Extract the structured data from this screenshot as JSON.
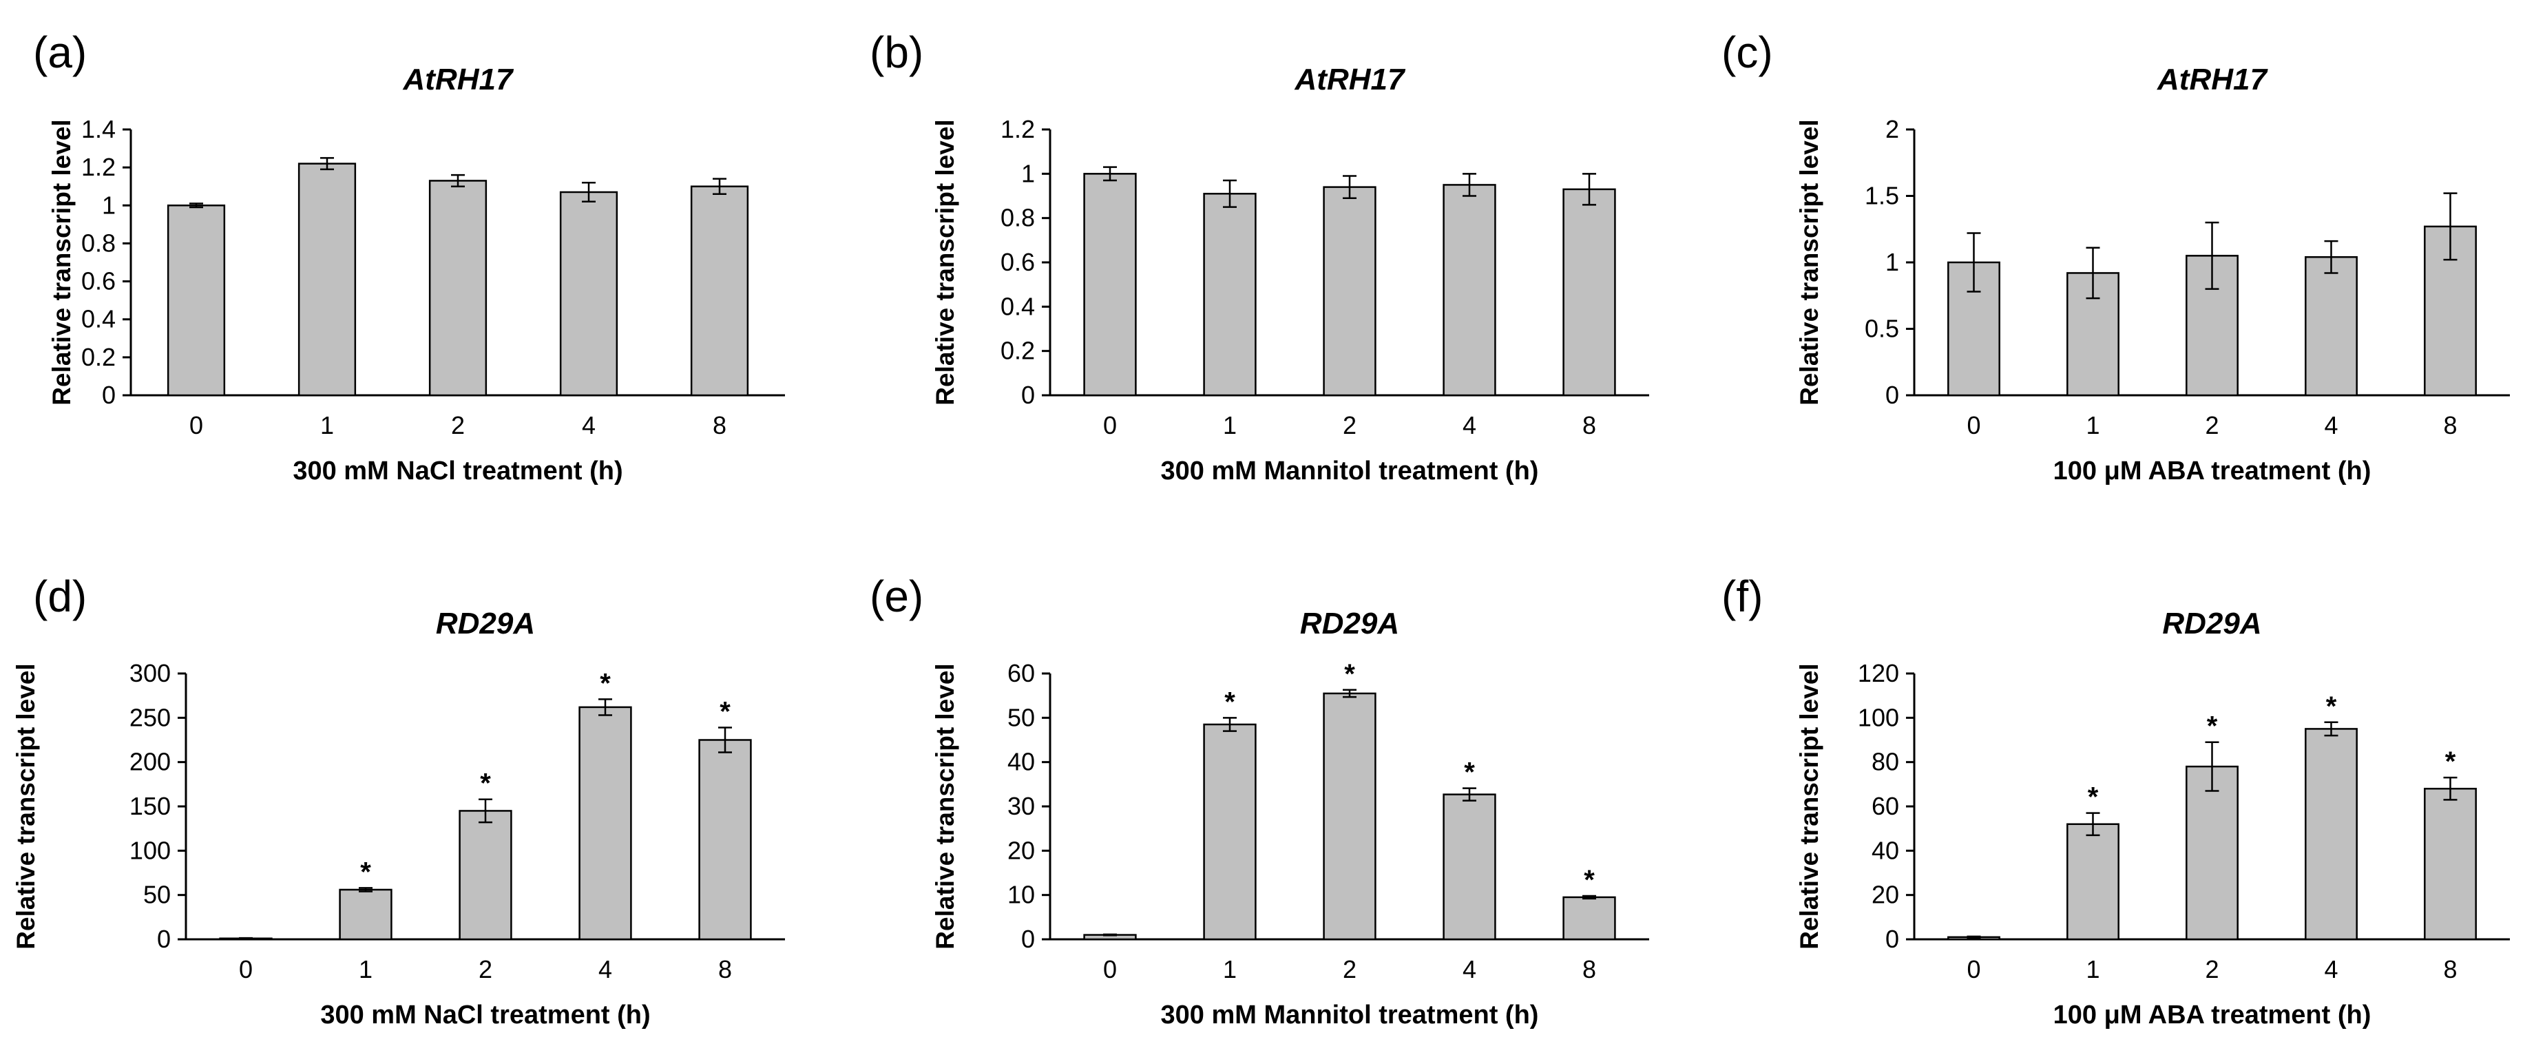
{
  "colors": {
    "bar_fill": "#c0c0c0",
    "bar_stroke": "#000000",
    "axis": "#000000",
    "background": "#ffffff"
  },
  "chart_data": [
    {
      "type": "bar",
      "panel": "(a)",
      "title": "AtRH17",
      "xlabel": "300 mM NaCl treatment (h)",
      "ylabel": "Relative transcript level",
      "categories": [
        "0",
        "1",
        "2",
        "4",
        "8"
      ],
      "values": [
        1.0,
        1.22,
        1.13,
        1.07,
        1.1
      ],
      "errors": [
        0.01,
        0.03,
        0.03,
        0.05,
        0.04
      ],
      "significance": [
        "",
        "",
        "",
        "",
        ""
      ],
      "ylim": [
        0,
        1.4
      ],
      "yticks": [
        "0",
        "0.2",
        "0.4",
        "0.6",
        "0.8",
        "1",
        "1.2",
        "1.4"
      ]
    },
    {
      "type": "bar",
      "panel": "(b)",
      "title": "AtRH17",
      "xlabel": "300 mM Mannitol treatment (h)",
      "ylabel": "Relative transcript level",
      "categories": [
        "0",
        "1",
        "2",
        "4",
        "8"
      ],
      "values": [
        1.0,
        0.91,
        0.94,
        0.95,
        0.93
      ],
      "errors": [
        0.03,
        0.06,
        0.05,
        0.05,
        0.07
      ],
      "significance": [
        "",
        "",
        "",
        "",
        ""
      ],
      "ylim": [
        0,
        1.2
      ],
      "yticks": [
        "0",
        "0.2",
        "0.4",
        "0.6",
        "0.8",
        "1",
        "1.2"
      ]
    },
    {
      "type": "bar",
      "panel": "(c)",
      "title": "AtRH17",
      "xlabel": "100 μM ABA treatment (h)",
      "ylabel": "Relative transcript level",
      "categories": [
        "0",
        "1",
        "2",
        "4",
        "8"
      ],
      "values": [
        1.0,
        0.92,
        1.05,
        1.04,
        1.27
      ],
      "errors": [
        0.22,
        0.19,
        0.25,
        0.12,
        0.25
      ],
      "significance": [
        "",
        "",
        "",
        "",
        ""
      ],
      "ylim": [
        0,
        2
      ],
      "yticks": [
        "0",
        "0.5",
        "1",
        "1.5",
        "2"
      ]
    },
    {
      "type": "bar",
      "panel": "(d)",
      "title": "RD29A",
      "xlabel": "300 mM NaCl treatment (h)",
      "ylabel": "Relative transcript level",
      "categories": [
        "0",
        "1",
        "2",
        "4",
        "8"
      ],
      "values": [
        1,
        56,
        145,
        262,
        225
      ],
      "errors": [
        0.5,
        2,
        13,
        9,
        14
      ],
      "significance": [
        "",
        "*",
        "*",
        "*",
        "*"
      ],
      "ylim": [
        0,
        300
      ],
      "yticks": [
        "0",
        "50",
        "100",
        "150",
        "200",
        "250",
        "300"
      ]
    },
    {
      "type": "bar",
      "panel": "(e)",
      "title": "RD29A",
      "xlabel": "300 mM Mannitol treatment (h)",
      "ylabel": "Relative transcript level",
      "categories": [
        "0",
        "1",
        "2",
        "4",
        "8"
      ],
      "values": [
        1,
        48.5,
        55.5,
        32.7,
        9.5
      ],
      "errors": [
        0.1,
        1.5,
        0.8,
        1.4,
        0.3
      ],
      "significance": [
        "",
        "*",
        "*",
        "*",
        "*"
      ],
      "ylim": [
        0,
        60
      ],
      "yticks": [
        "0",
        "10",
        "20",
        "30",
        "40",
        "50",
        "60"
      ]
    },
    {
      "type": "bar",
      "panel": "(f)",
      "title": "RD29A",
      "xlabel": "100 μM ABA treatment (h)",
      "ylabel": "Relative transcript level",
      "categories": [
        "0",
        "1",
        "2",
        "4",
        "8"
      ],
      "values": [
        1,
        52,
        78,
        95,
        68
      ],
      "errors": [
        0.3,
        5,
        11,
        3,
        5
      ],
      "significance": [
        "",
        "*",
        "*",
        "*",
        "*"
      ],
      "ylim": [
        0,
        120
      ],
      "yticks": [
        "0",
        "20",
        "40",
        "60",
        "80",
        "100",
        "120"
      ]
    }
  ]
}
